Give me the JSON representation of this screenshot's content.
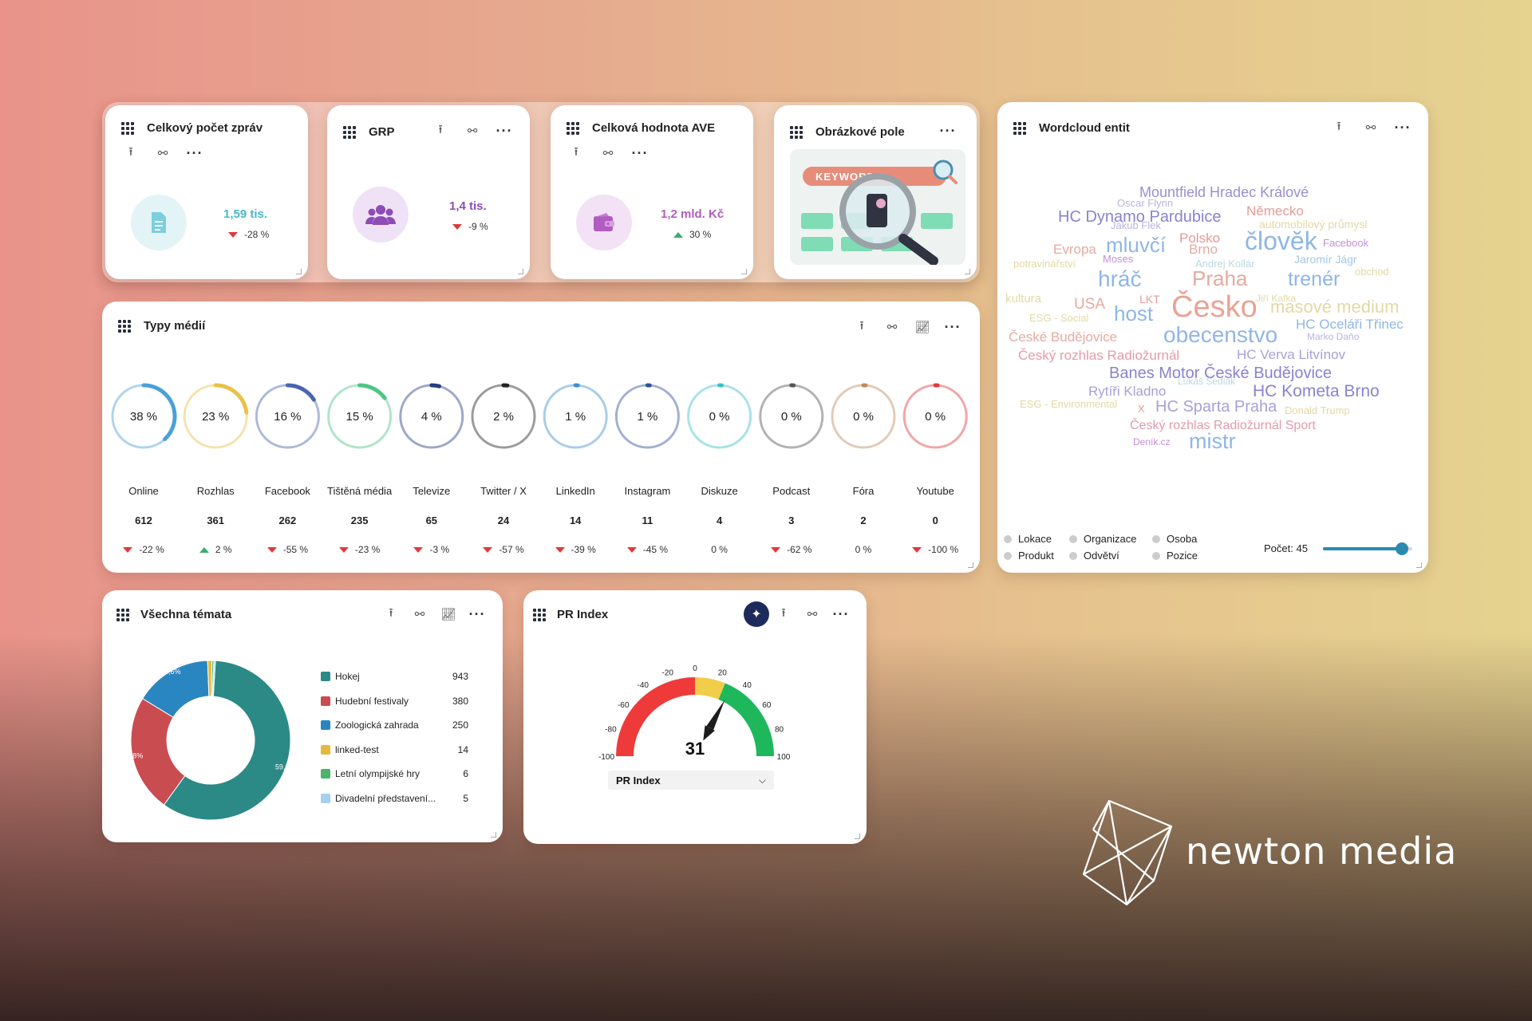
{
  "kpi_cards": [
    {
      "title": "Celkový počet zpráv",
      "value": "1,59 tis.",
      "delta": "-28 %",
      "trend": "down",
      "icon": "document-icon",
      "color": "#4ab6c9"
    },
    {
      "title": "GRP",
      "value": "1,4 tis.",
      "delta": "-9 %",
      "trend": "down",
      "icon": "people-icon",
      "color": "#8e4cb8"
    },
    {
      "title": "Celková hodnota AVE",
      "value": "1,2 mld. Kč",
      "delta": "30 %",
      "trend": "up",
      "icon": "wallet-icon",
      "color": "#b05cc0"
    }
  ],
  "image_card": {
    "title": "Obrázkové pole",
    "keyword_label": "KEYWORD"
  },
  "media_types": {
    "title": "Typy médií",
    "items": [
      {
        "label": "Online",
        "percent": "38 %",
        "fraction": 0.38,
        "count": "612",
        "delta": "-22 %",
        "trend": "down",
        "color": "#4aa0d8"
      },
      {
        "label": "Rozhlas",
        "percent": "23 %",
        "fraction": 0.23,
        "count": "361",
        "delta": "2 %",
        "trend": "up",
        "color": "#e8c247"
      },
      {
        "label": "Facebook",
        "percent": "16 %",
        "fraction": 0.16,
        "count": "262",
        "delta": "-55 %",
        "trend": "down",
        "color": "#4a64b0"
      },
      {
        "label": "Tištěná média",
        "percent": "15 %",
        "fraction": 0.15,
        "count": "235",
        "delta": "-23 %",
        "trend": "down",
        "color": "#4fc483"
      },
      {
        "label": "Televize",
        "percent": "4 %",
        "fraction": 0.04,
        "count": "65",
        "delta": "-3 %",
        "trend": "down",
        "color": "#253d82"
      },
      {
        "label": "Twitter / X",
        "percent": "2 %",
        "fraction": 0.02,
        "count": "24",
        "delta": "-57 %",
        "trend": "down",
        "color": "#222222"
      },
      {
        "label": "LinkedIn",
        "percent": "1 %",
        "fraction": 0.01,
        "count": "14",
        "delta": "-39 %",
        "trend": "down",
        "color": "#3d8fd0"
      },
      {
        "label": "Instagram",
        "percent": "1 %",
        "fraction": 0.01,
        "count": "11",
        "delta": "-45 %",
        "trend": "down",
        "color": "#344f9a"
      },
      {
        "label": "Diskuze",
        "percent": "0 %",
        "fraction": 0.0,
        "count": "4",
        "delta": "0 %",
        "trend": "none",
        "color": "#3bbfca"
      },
      {
        "label": "Podcast",
        "percent": "0 %",
        "fraction": 0.0,
        "count": "3",
        "delta": "-62 %",
        "trend": "down",
        "color": "#555555"
      },
      {
        "label": "Fóra",
        "percent": "0 %",
        "fraction": 0.0,
        "count": "2",
        "delta": "0 %",
        "trend": "none",
        "color": "#c08a5a"
      },
      {
        "label": "Youtube",
        "percent": "0 %",
        "fraction": 0.0,
        "count": "0",
        "delta": "-100 %",
        "trend": "down",
        "color": "#e0383e"
      }
    ]
  },
  "wordcloud": {
    "title": "Wordcloud entit",
    "words": [
      {
        "text": "Mountfield Hradec Králové",
        "color": "#9b8fd0",
        "size": 18
      },
      {
        "text": "Oscar Flynn",
        "color": "#b9b3e3",
        "size": 13
      },
      {
        "text": "HC Dynamo Pardubice",
        "color": "#8a82cf",
        "size": 20
      },
      {
        "text": "Německo",
        "color": "#e59a9a",
        "size": 17
      },
      {
        "text": "Jakub Flek",
        "color": "#b9b3e3",
        "size": 13
      },
      {
        "text": "automobilový průmysl",
        "color": "#e2d9a3",
        "size": 14
      },
      {
        "text": "Polsko",
        "color": "#e59a9a",
        "size": 17
      },
      {
        "text": "Evropa",
        "color": "#e5aaa0",
        "size": 17
      },
      {
        "text": "mluvčí",
        "color": "#8fb6e6",
        "size": 26
      },
      {
        "text": "člověk",
        "color": "#8fb6e6",
        "size": 32
      },
      {
        "text": "Facebook",
        "color": "#c38fd8",
        "size": 13
      },
      {
        "text": "Brno",
        "color": "#e5aaa0",
        "size": 17
      },
      {
        "text": "Moses",
        "color": "#c38fd8",
        "size": 13
      },
      {
        "text": "potravinářství",
        "color": "#e2d9a3",
        "size": 13
      },
      {
        "text": "Andrej Kollár",
        "color": "#b9d9e0",
        "size": 13
      },
      {
        "text": "Jaromír Jágr",
        "color": "#a5c6e8",
        "size": 14
      },
      {
        "text": "obchod",
        "color": "#e2d9a3",
        "size": 13
      },
      {
        "text": "hráč",
        "color": "#8fb6e6",
        "size": 28
      },
      {
        "text": "Praha",
        "color": "#e5aaa0",
        "size": 26
      },
      {
        "text": "trenér",
        "color": "#8fb6e6",
        "size": 25
      },
      {
        "text": "kultura",
        "color": "#e2d9a3",
        "size": 15
      },
      {
        "text": "LKT",
        "color": "#e59a9a",
        "size": 14
      },
      {
        "text": "Jiří Kafka",
        "color": "#e2d9a3",
        "size": 12
      },
      {
        "text": "USA",
        "color": "#e5aaa0",
        "size": 19
      },
      {
        "text": "Česko",
        "color": "#e8a396",
        "size": 38
      },
      {
        "text": "masové medium",
        "color": "#e2d9a3",
        "size": 22
      },
      {
        "text": "ESG - Social",
        "color": "#e2d9a3",
        "size": 13
      },
      {
        "text": "host",
        "color": "#8fb6e6",
        "size": 26
      },
      {
        "text": "HC Oceláři Třinec",
        "color": "#8fb6e6",
        "size": 17
      },
      {
        "text": "České Budějovice",
        "color": "#e5aaa0",
        "size": 17
      },
      {
        "text": "obecenstvo",
        "color": "#8fb6e6",
        "size": 28
      },
      {
        "text": "Marko Daňo",
        "color": "#b9b3e3",
        "size": 12
      },
      {
        "text": "Český rozhlas Radiožurnál",
        "color": "#e59aaa",
        "size": 17
      },
      {
        "text": "HC Verva Litvínov",
        "color": "#a99fd8",
        "size": 17
      },
      {
        "text": "Banes Motor České Budějovice",
        "color": "#8a82cf",
        "size": 20
      },
      {
        "text": "Rytíři Kladno",
        "color": "#a99fd8",
        "size": 17
      },
      {
        "text": "Lukáš Sedlák",
        "color": "#b9d9e0",
        "size": 12
      },
      {
        "text": "HC Kometa Brno",
        "color": "#8a82cf",
        "size": 21
      },
      {
        "text": "ESG - Environmental",
        "color": "#e2d9a3",
        "size": 13
      },
      {
        "text": "X",
        "color": "#e59a9a",
        "size": 13
      },
      {
        "text": "HC Sparta Praha",
        "color": "#a99fd8",
        "size": 20
      },
      {
        "text": "Donald Trump",
        "color": "#e2d9a3",
        "size": 13
      },
      {
        "text": "Český rozhlas Radiožurnál Sport",
        "color": "#e59aaa",
        "size": 16
      },
      {
        "text": "Deník.cz",
        "color": "#c38fd8",
        "size": 12
      },
      {
        "text": "mistr",
        "color": "#8fb6e6",
        "size": 27
      }
    ],
    "legend": [
      "Lokace",
      "Organizace",
      "Osoba",
      "Produkt",
      "Odvětví",
      "Pozice"
    ],
    "count_label": "Počet: 45",
    "slider_fraction": 0.88
  },
  "topics": {
    "title": "Všechna témata",
    "items": [
      {
        "label": "Hokej",
        "count": "943",
        "color": "#2b8a86"
      },
      {
        "label": "Hudební festivaly",
        "count": "380",
        "color": "#c84c50"
      },
      {
        "label": "Zoologická zahrada",
        "count": "250",
        "color": "#2a86c0"
      },
      {
        "label": "linked-test",
        "count": "14",
        "color": "#e5b93c"
      },
      {
        "label": "Letní olympijské hry",
        "count": "6",
        "color": "#4bb46b"
      },
      {
        "label": "Divadelní představení...",
        "count": "5",
        "color": "#a6d0ee"
      }
    ],
    "donut_labels": [
      "59,0%",
      "23,8%",
      "15,6%"
    ]
  },
  "pr_index": {
    "title": "PR Index",
    "value": "31",
    "value_number": 31,
    "ticks": [
      "-100",
      "-80",
      "-60",
      "-40",
      "-20",
      "0",
      "20",
      "40",
      "60",
      "80",
      "100"
    ],
    "dropdown": "PR Index"
  },
  "brand": {
    "name": "newton media"
  }
}
